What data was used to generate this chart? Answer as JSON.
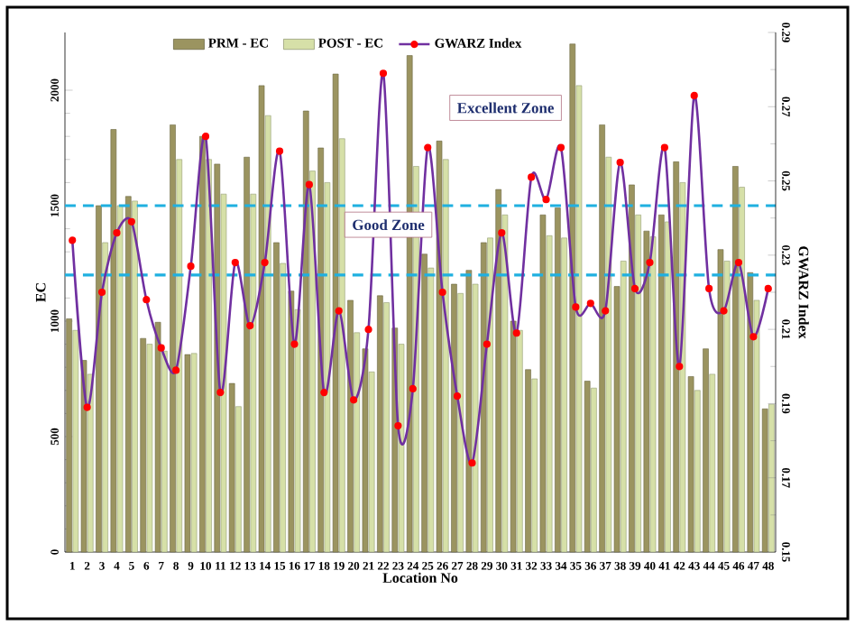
{
  "chart_data": {
    "type": "bar",
    "xlabel": "Location No",
    "ylabel": "EC",
    "y2label": "GWARZ Index",
    "categories": [
      "1",
      "2",
      "3",
      "4",
      "5",
      "6",
      "7",
      "8",
      "9",
      "10",
      "11",
      "12",
      "13",
      "14",
      "15",
      "16",
      "17",
      "18",
      "19",
      "20",
      "21",
      "22",
      "23",
      "24",
      "25",
      "26",
      "27",
      "28",
      "29",
      "30",
      "31",
      "32",
      "33",
      "34",
      "35",
      "36",
      "37",
      "38",
      "39",
      "40",
      "41",
      "42",
      "43",
      "44",
      "45",
      "46",
      "47",
      "48"
    ],
    "series": [
      {
        "name": "PRM - EC",
        "color": "#9b9460",
        "values": [
          1010,
          830,
          1500,
          1830,
          1540,
          925,
          995,
          1850,
          855,
          1800,
          1680,
          730,
          1710,
          2020,
          1340,
          1130,
          1910,
          1750,
          2070,
          1090,
          880,
          1110,
          970,
          2150,
          1290,
          1780,
          1160,
          1220,
          1340,
          1570,
          1000,
          790,
          1460,
          1490,
          2200,
          740,
          1850,
          1150,
          1590,
          1390,
          1460,
          1690,
          760,
          880,
          1310,
          1670,
          1210,
          620
        ]
      },
      {
        "name": "POST - EC",
        "color": "#d6e0a8",
        "values": [
          960,
          770,
          1340,
          1500,
          1520,
          900,
          870,
          1700,
          860,
          1700,
          1550,
          630,
          1550,
          1890,
          1250,
          1050,
          1650,
          1600,
          1790,
          950,
          780,
          1080,
          900,
          1670,
          1230,
          1700,
          1120,
          1160,
          1360,
          1460,
          960,
          750,
          1370,
          1360,
          2020,
          710,
          1710,
          1260,
          1460,
          1365,
          1430,
          1600,
          700,
          770,
          1260,
          1580,
          1090,
          640
        ]
      },
      {
        "name": "GWARZ Index",
        "type": "line",
        "axis": "y2",
        "color": "#7030a0",
        "marker": "circle",
        "values": [
          0.234,
          0.189,
          0.22,
          0.236,
          0.239,
          0.218,
          0.205,
          0.199,
          0.227,
          0.262,
          0.193,
          0.228,
          0.211,
          0.228,
          0.258,
          0.206,
          0.249,
          0.193,
          0.215,
          0.191,
          0.21,
          0.279,
          0.184,
          0.194,
          0.259,
          0.22,
          0.192,
          0.174,
          0.206,
          0.236,
          0.209,
          0.251,
          0.245,
          0.259,
          0.216,
          0.217,
          0.215,
          0.255,
          0.221,
          0.228,
          0.259,
          0.2,
          0.273,
          0.221,
          0.215,
          0.228,
          0.208,
          0.221
        ]
      }
    ],
    "ylim": [
      0,
      2250
    ],
    "yticks": [
      0,
      500,
      1000,
      1500,
      2000
    ],
    "y2lim": [
      0.15,
      0.29
    ],
    "y2ticks": [
      {
        "value": 0.15,
        "label": "0.15"
      },
      {
        "value": 0.17,
        "label": "0.17"
      },
      {
        "value": 0.19,
        "label": "0.19"
      },
      {
        "value": 0.21,
        "label": "0.21"
      },
      {
        "value": 0.23,
        "label": "0.23"
      },
      {
        "value": 0.25,
        "label": "0.25"
      },
      {
        "value": 0.27,
        "label": "0.27"
      },
      {
        "value": 0.29,
        "label": "0.29"
      }
    ],
    "legend": "top",
    "ref_lines": [
      {
        "axis": "y",
        "value": 1500,
        "color": "#1fb0e0",
        "line_style": "dashed"
      },
      {
        "axis": "y",
        "value": 1200,
        "color": "#1fb0e0",
        "line_style": "dashed"
      }
    ],
    "annotations": [
      "Excellent Zone",
      "Good Zone"
    ]
  }
}
